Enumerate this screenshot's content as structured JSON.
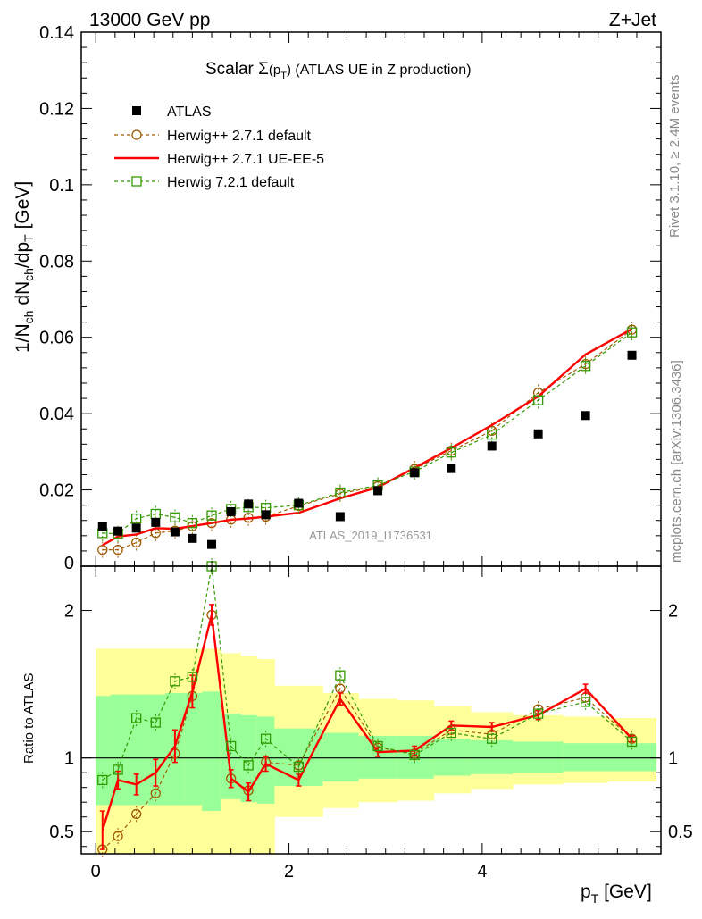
{
  "header": {
    "left": "13000 GeV pp",
    "right": "Z+Jet"
  },
  "side_labels": {
    "rivet": "Rivet 3.1.10, ≥ 2.4M events",
    "mcplots": "mcplots.cern.ch [arXiv:1306.3436]"
  },
  "chart_data": [
    {
      "type": "scatter",
      "panel": "main",
      "title_main": "Scalar Σ",
      "title_sub": "(p",
      "title_subsub": "T",
      "title_close": ")",
      "title_rest": " (ATLAS UE in Z production)",
      "ylabel": "1/N_ch dN_ch/dp_T [GeV]",
      "watermark": "ATLAS_2019_I1736531",
      "xlim": [
        -0.15,
        5.85
      ],
      "ylim": [
        0,
        0.14
      ],
      "yticks": [
        {
          "v": 0,
          "label": "0"
        },
        {
          "v": 0.02,
          "label": "0.02"
        },
        {
          "v": 0.04,
          "label": "0.04"
        },
        {
          "v": 0.06,
          "label": "0.06"
        },
        {
          "v": 0.08,
          "label": "0.08"
        },
        {
          "v": 0.1,
          "label": "0.1"
        },
        {
          "v": 0.12,
          "label": "0.12"
        },
        {
          "v": 0.14,
          "label": "0.14"
        }
      ],
      "x": [
        0.07,
        0.23,
        0.42,
        0.62,
        0.82,
        1.0,
        1.2,
        1.4,
        1.58,
        1.76,
        2.1,
        2.53,
        2.92,
        3.3,
        3.68,
        4.1,
        4.58,
        5.07,
        5.55
      ],
      "series": [
        {
          "name": "ATLAS",
          "color": "#000000",
          "marker": "filled-square",
          "values": [
            0.0105,
            0.0092,
            0.01,
            0.0115,
            0.009,
            0.0073,
            0.0057,
            0.0143,
            0.0163,
            0.0135,
            0.0165,
            0.013,
            0.0198,
            0.0245,
            0.0256,
            0.0315,
            0.0347,
            0.0395,
            0.0553
          ]
        },
        {
          "name": "Herwig++ 2.7.1 default",
          "color": "#a05a00",
          "marker": "open-circle",
          "dashed": true,
          "values": [
            0.0043,
            0.0043,
            0.0062,
            0.0087,
            0.0093,
            0.0105,
            0.0113,
            0.0122,
            0.0127,
            0.013,
            0.0158,
            0.019,
            0.021,
            0.0255,
            0.0303,
            0.0355,
            0.0455,
            0.053,
            0.062
          ]
        },
        {
          "name": "Herwig++ 2.7.1 UE-EE-5",
          "color": "#ff0000",
          "marker": "line",
          "dashed": false,
          "values": [
            0.0055,
            0.0078,
            0.0083,
            0.01,
            0.0098,
            0.0105,
            0.0113,
            0.0122,
            0.0125,
            0.013,
            0.014,
            0.0178,
            0.0207,
            0.0258,
            0.031,
            0.037,
            0.0445,
            0.0555,
            0.0622
          ]
        },
        {
          "name": "Herwig 7.2.1 default",
          "color": "#339900",
          "marker": "open-square",
          "dashed": true,
          "values": [
            0.0087,
            0.0085,
            0.0125,
            0.0137,
            0.0128,
            0.0113,
            0.0133,
            0.015,
            0.0155,
            0.0153,
            0.016,
            0.0193,
            0.0212,
            0.0248,
            0.0298,
            0.0345,
            0.0435,
            0.0525,
            0.0613
          ]
        }
      ]
    },
    {
      "type": "line",
      "panel": "ratio",
      "ylabel": "Ratio to ATLAS",
      "xlabel": "p_T [GeV]",
      "xlim": [
        -0.15,
        5.85
      ],
      "ylim": [
        0.35,
        2.3
      ],
      "xticks": [
        {
          "v": 0,
          "label": "0"
        },
        {
          "v": 2,
          "label": "2"
        },
        {
          "v": 4,
          "label": "4"
        }
      ],
      "yticks": [
        {
          "v": 0.5,
          "label": "0.5"
        },
        {
          "v": 1,
          "label": "1"
        },
        {
          "v": 2,
          "label": "2"
        }
      ],
      "bands": {
        "bin_edges": [
          0,
          0.15,
          0.32,
          0.52,
          0.72,
          0.92,
          1.1,
          1.3,
          1.5,
          1.67,
          1.85,
          2.35,
          2.72,
          3.12,
          3.5,
          3.88,
          4.32,
          4.84,
          5.3,
          5.8
        ],
        "yellow_color": "#ffff99",
        "green_color": "#99ff99",
        "yellow_low": [
          0.35,
          0.35,
          0.35,
          0.35,
          0.35,
          0.35,
          0.35,
          0.35,
          0.35,
          0.35,
          0.6,
          0.66,
          0.7,
          0.71,
          0.76,
          0.79,
          0.82,
          0.83,
          0.84
        ],
        "yellow_high": [
          1.74,
          1.74,
          1.74,
          1.74,
          1.74,
          1.74,
          1.74,
          1.71,
          1.69,
          1.67,
          1.49,
          1.44,
          1.4,
          1.39,
          1.35,
          1.31,
          1.29,
          1.28,
          1.27
        ],
        "green_low": [
          0.68,
          0.68,
          0.68,
          0.68,
          0.68,
          0.68,
          0.64,
          0.72,
          0.7,
          0.69,
          0.81,
          0.84,
          0.86,
          0.86,
          0.88,
          0.89,
          0.9,
          0.91,
          0.91
        ],
        "green_high": [
          1.42,
          1.43,
          1.43,
          1.43,
          1.44,
          1.44,
          1.45,
          1.3,
          1.29,
          1.28,
          1.2,
          1.17,
          1.15,
          1.15,
          1.13,
          1.12,
          1.11,
          1.1,
          1.1
        ]
      },
      "series": [
        {
          "name": "Herwig++ 2.7.1 default",
          "color": "#a05a00",
          "marker": "open-circle",
          "dashed": true,
          "values": [
            0.38,
            0.47,
            0.62,
            0.76,
            1.03,
            1.42,
            1.97,
            0.86,
            0.78,
            0.97,
            0.95,
            1.47,
            1.07,
            1.03,
            1.19,
            1.16,
            1.33,
            1.41,
            1.13
          ]
        },
        {
          "name": "Herwig++ 2.7.1 UE-EE-5",
          "color": "#ff0000",
          "marker": "line",
          "dashed": false,
          "values": [
            0.51,
            0.85,
            0.82,
            0.9,
            1.08,
            1.45,
            1.97,
            0.86,
            0.77,
            0.96,
            0.85,
            1.4,
            1.04,
            1.05,
            1.22,
            1.21,
            1.29,
            1.47,
            1.13
          ],
          "errors": [
            0.13,
            0.06,
            0.07,
            0.09,
            0.11,
            0.11,
            0.07,
            0.06,
            0.06,
            0.05,
            0.04,
            0.04,
            0.03,
            0.03,
            0.03,
            0.03,
            0.03,
            0.03,
            0.02
          ]
        },
        {
          "name": "Herwig 7.2.1 default",
          "color": "#339900",
          "marker": "open-square",
          "dashed": true,
          "values": [
            0.85,
            0.92,
            1.27,
            1.24,
            1.52,
            1.55,
            2.33,
            1.08,
            0.95,
            1.13,
            0.94,
            1.56,
            1.08,
            1.02,
            1.17,
            1.13,
            1.3,
            1.38,
            1.11
          ]
        }
      ]
    }
  ]
}
